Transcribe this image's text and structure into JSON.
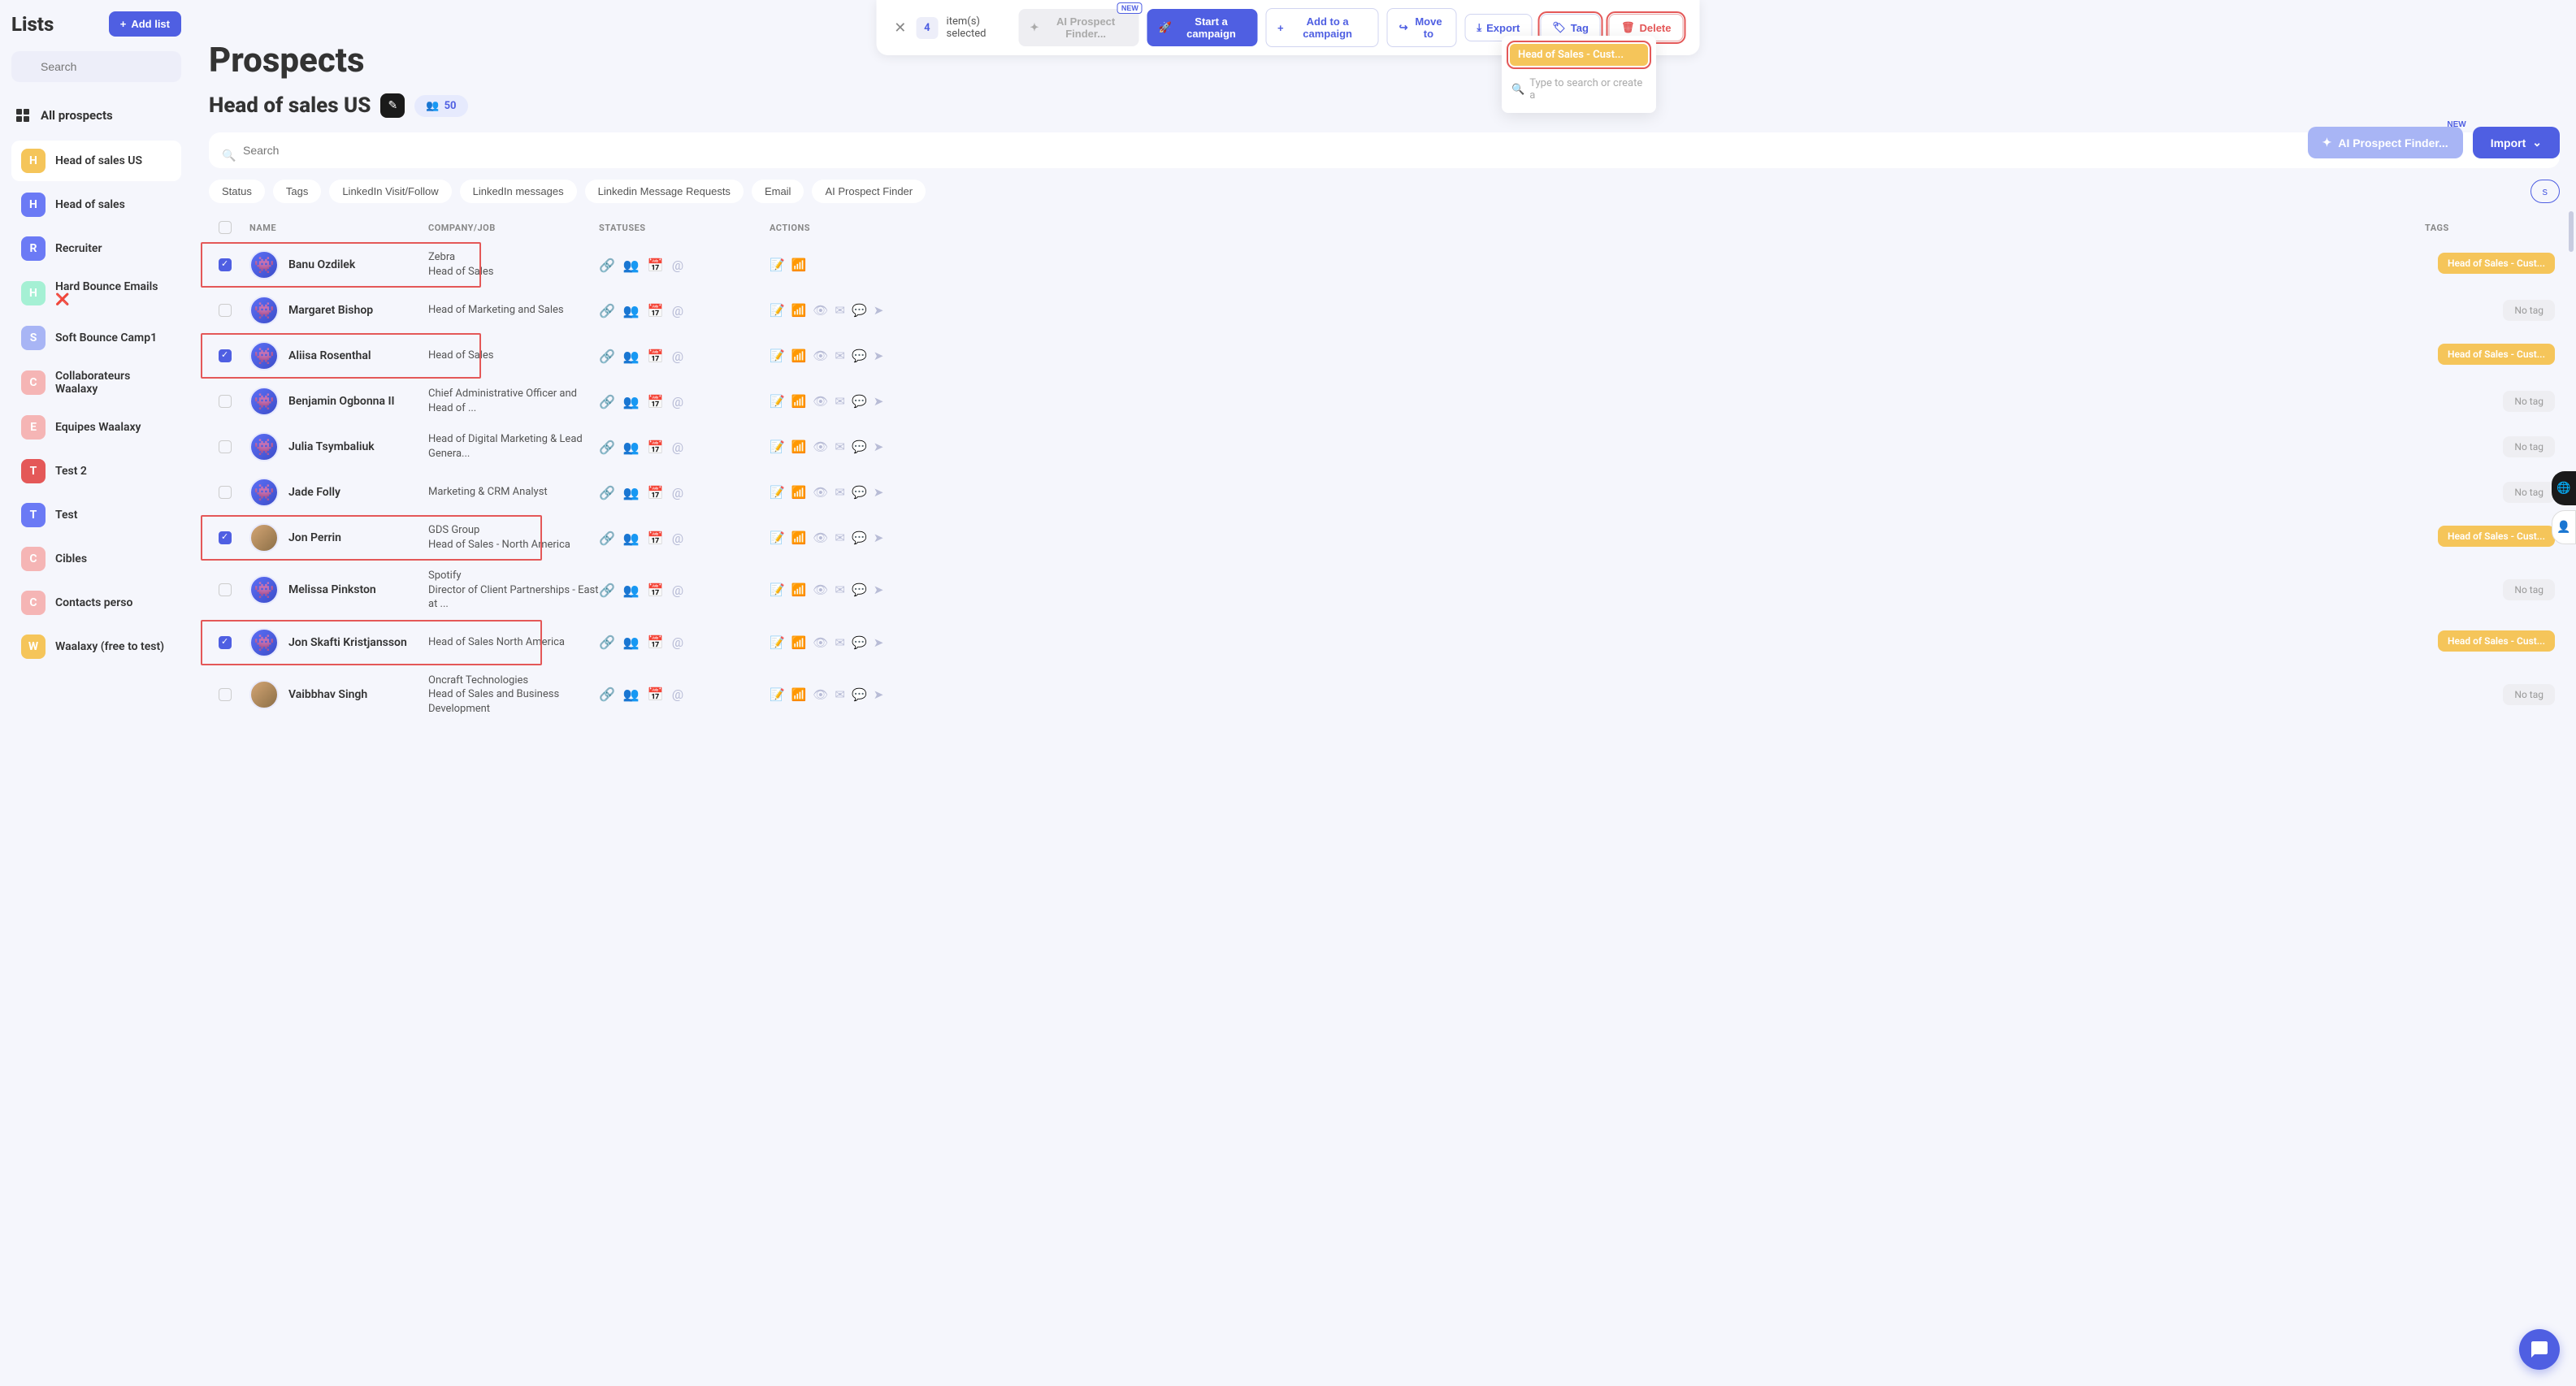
{
  "sidebar": {
    "title": "Lists",
    "addListLabel": "Add list",
    "searchPlaceholder": "Search",
    "allProspects": "All prospects",
    "lists": [
      {
        "letter": "H",
        "color": "#f5c55a",
        "name": "Head of sales US",
        "active": true
      },
      {
        "letter": "H",
        "color": "#6b7af5",
        "name": "Head of sales"
      },
      {
        "letter": "R",
        "color": "#6b7af5",
        "name": "Recruiter"
      },
      {
        "letter": "H",
        "color": "#a5f0d4",
        "name": "Hard Bounce Emails ❌"
      },
      {
        "letter": "S",
        "color": "#a8b5f5",
        "name": "Soft Bounce Camp1"
      },
      {
        "letter": "C",
        "color": "#f5b5b5",
        "name": "Collaborateurs Waalaxy"
      },
      {
        "letter": "E",
        "color": "#f5b5b5",
        "name": "Equipes Waalaxy"
      },
      {
        "letter": "T",
        "color": "#e45858",
        "name": "Test 2"
      },
      {
        "letter": "T",
        "color": "#6b7af5",
        "name": "Test"
      },
      {
        "letter": "C",
        "color": "#f5b5b5",
        "name": "Cibles"
      },
      {
        "letter": "C",
        "color": "#f5b5b5",
        "name": "Contacts perso"
      },
      {
        "letter": "W",
        "color": "#f5c55a",
        "name": "Waalaxy (free to test)"
      }
    ]
  },
  "topBar": {
    "count": "4",
    "itemsSelected": "item(s) selected",
    "aiFinder": "AI Prospect Finder...",
    "newBadge": "NEW",
    "startCampaign": "Start a campaign",
    "addToCampaign": "Add to a campaign",
    "moveTo": "Move to",
    "export": "Export",
    "tag": "Tag",
    "delete": "Delete"
  },
  "tagPopover": {
    "tagName": "Head of Sales - Cust...",
    "searchPlaceholder": "Type to search or create a"
  },
  "page": {
    "title": "Prospects",
    "listName": "Head of sales US",
    "count": "50",
    "searchPlaceholder": "Search",
    "aiBtn": "AI Prospect Finder...",
    "importBtn": "Import",
    "newBadge": "NEW"
  },
  "filters": {
    "status": "Status",
    "tags": "Tags",
    "linkedinVisit": "LinkedIn Visit/Follow",
    "linkedinMessages": "LinkedIn messages",
    "linkedinRequests": "Linkedin Message Requests",
    "email": "Email",
    "aiFinder": "AI Prospect Finder",
    "rightChip": "s"
  },
  "columns": {
    "name": "NAME",
    "company": "COMPANY/JOB",
    "statuses": "STATUSES",
    "actions": "ACTIONS",
    "tags": "TAGS"
  },
  "tagLabels": {
    "headOfSales": "Head of Sales - Cust...",
    "noTag": "No tag"
  },
  "rows": [
    {
      "checked": true,
      "highlighted": true,
      "name": "Banu Ozdilek",
      "company": "Zebra",
      "job": "Head of Sales",
      "tag": "headOfSales",
      "shortActions": true
    },
    {
      "checked": false,
      "name": "Margaret Bishop",
      "company": "",
      "job": "Head of Marketing and Sales",
      "tag": "none"
    },
    {
      "checked": true,
      "highlighted": true,
      "name": "Aliisa Rosenthal",
      "company": "",
      "job": "Head of Sales",
      "tag": "headOfSales"
    },
    {
      "checked": false,
      "name": "Benjamin Ogbonna II",
      "company": "",
      "job": "Chief Administrative Officer and Head of ...",
      "tag": "none"
    },
    {
      "checked": false,
      "name": "Julia Tsymbaliuk",
      "company": "",
      "job": "Head of Digital Marketing & Lead Genera...",
      "tag": "none"
    },
    {
      "checked": false,
      "name": "Jade Folly",
      "company": "",
      "job": "Marketing & CRM Analyst",
      "tag": "none"
    },
    {
      "checked": true,
      "highlighted": true,
      "photo": true,
      "hlWide": true,
      "name": "Jon Perrin",
      "company": "GDS Group",
      "job": "Head of Sales - North America",
      "tag": "headOfSales"
    },
    {
      "checked": false,
      "name": "Melissa Pinkston",
      "company": "Spotify",
      "job": "Director of Client Partnerships - East at ...",
      "tag": "none"
    },
    {
      "checked": true,
      "highlighted": true,
      "hlWide": true,
      "name": "Jon Skafti Kristjansson",
      "company": "",
      "job": "Head of Sales North America",
      "tag": "headOfSales"
    },
    {
      "checked": false,
      "photo": true,
      "name": "Vaibbhav Singh",
      "company": "Oncraft Technologies",
      "job": "Head of Sales and Business Development",
      "tag": "none"
    }
  ]
}
